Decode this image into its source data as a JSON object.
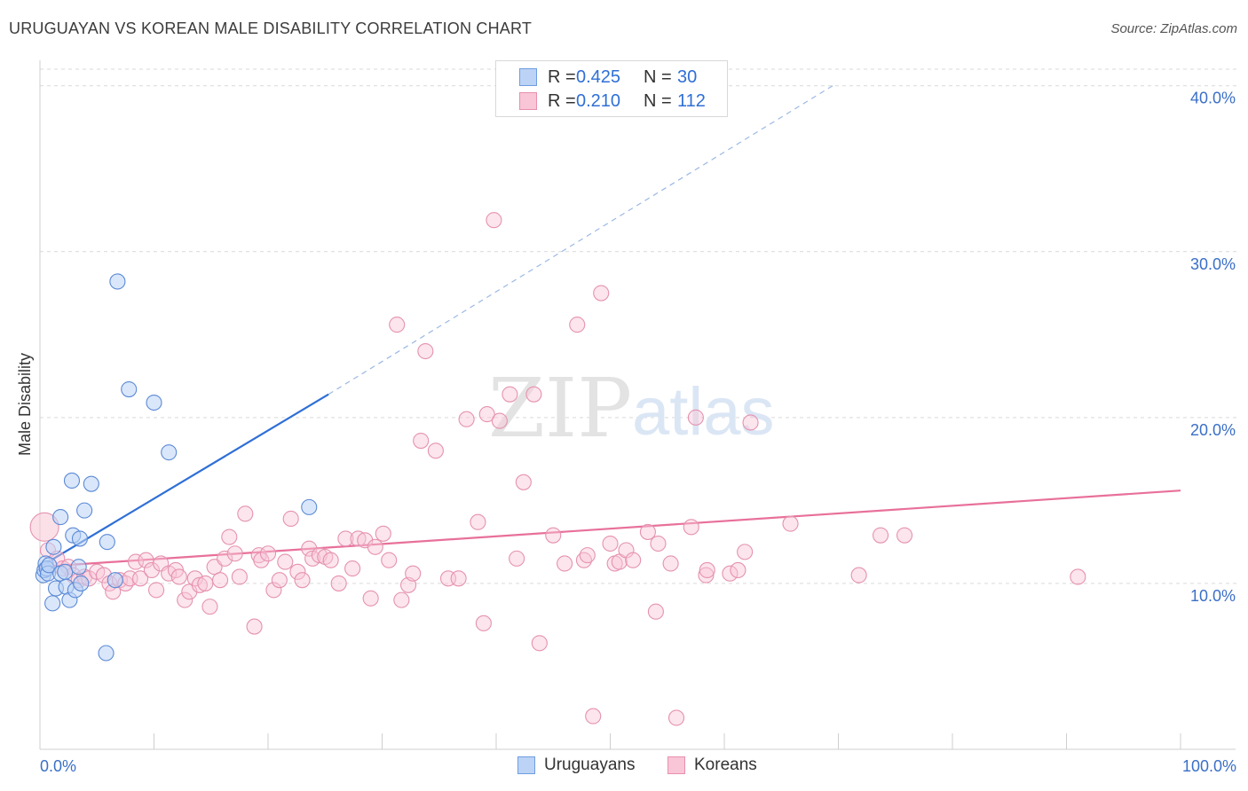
{
  "title": "URUGUAYAN VS KOREAN MALE DISABILITY CORRELATION CHART",
  "source": "Source: ZipAtlas.com",
  "watermark": {
    "zip": "ZIP",
    "atlas": "atlas"
  },
  "colors": {
    "blue": "#2f6fd6",
    "blue_fill": "#bcd3f5",
    "pink": "#e8709a",
    "pink_fill": "#f8c6d6",
    "grid": "#d9d9d9",
    "axis_text": "#3a6fc8"
  },
  "legend": {
    "rows": [
      {
        "r_label": "R =",
        "r_value": "0.425",
        "n_label": "N =",
        "n_value": "30"
      },
      {
        "r_label": "R =",
        "r_value": "0.210",
        "n_label": "N =",
        "n_value": "112"
      }
    ]
  },
  "bottom_legend": {
    "a": "Uruguayans",
    "b": "Koreans"
  },
  "chart_data": {
    "type": "scatter",
    "title": "URUGUAYAN VS KOREAN MALE DISABILITY CORRELATION CHART",
    "xlabel": "",
    "ylabel": "Male Disability",
    "xlim": [
      0,
      100
    ],
    "ylim": [
      0,
      41
    ],
    "x_tick_labels": [
      "0.0%",
      "100.0%"
    ],
    "y_ticks": [
      10,
      20,
      30,
      40
    ],
    "y_tick_labels": [
      "10.0%",
      "20.0%",
      "30.0%",
      "40.0%"
    ],
    "grid": true,
    "legend_position": "top-center",
    "series": [
      {
        "name": "Uruguayans",
        "R": 0.425,
        "N": 30,
        "trend": {
          "x0": 0,
          "y0": 11.0,
          "x1": 25.3,
          "y1": 21.4,
          "dashed_to_x": 69.5,
          "dashed_to_y": 40.0
        },
        "points": [
          [
            0.3,
            10.5
          ],
          [
            0.4,
            10.8
          ],
          [
            0.5,
            11.2
          ],
          [
            0.6,
            10.9
          ],
          [
            0.7,
            10.6
          ],
          [
            0.8,
            11.1
          ],
          [
            1.1,
            8.8
          ],
          [
            1.2,
            12.2
          ],
          [
            1.4,
            9.7
          ],
          [
            1.8,
            10.6
          ],
          [
            1.8,
            14.0
          ],
          [
            2.2,
            10.7
          ],
          [
            2.3,
            9.8
          ],
          [
            2.6,
            9.0
          ],
          [
            2.8,
            16.2
          ],
          [
            2.9,
            12.9
          ],
          [
            3.1,
            9.6
          ],
          [
            3.4,
            11.0
          ],
          [
            3.5,
            12.7
          ],
          [
            3.6,
            10.0
          ],
          [
            3.9,
            14.4
          ],
          [
            4.5,
            16.0
          ],
          [
            5.9,
            12.5
          ],
          [
            5.8,
            5.8
          ],
          [
            6.6,
            10.2
          ],
          [
            6.8,
            28.2
          ],
          [
            7.8,
            21.7
          ],
          [
            10.0,
            20.9
          ],
          [
            11.3,
            17.9
          ],
          [
            23.6,
            14.6
          ]
        ]
      },
      {
        "name": "Koreans",
        "R": 0.21,
        "N": 112,
        "trend": {
          "x0": 0,
          "y0": 11.0,
          "x1": 100,
          "y1": 15.6
        },
        "points": [
          [
            0.4,
            13.4
          ],
          [
            0.7,
            12.0
          ],
          [
            1.5,
            11.5
          ],
          [
            2.0,
            10.9
          ],
          [
            2.5,
            11.0
          ],
          [
            2.9,
            10.5
          ],
          [
            3.4,
            10.2
          ],
          [
            3.9,
            10.4
          ],
          [
            4.3,
            10.3
          ],
          [
            5.0,
            10.7
          ],
          [
            5.6,
            10.5
          ],
          [
            6.1,
            10.0
          ],
          [
            6.4,
            9.5
          ],
          [
            7.0,
            10.2
          ],
          [
            7.5,
            10.0
          ],
          [
            7.9,
            10.3
          ],
          [
            8.4,
            11.3
          ],
          [
            8.8,
            10.3
          ],
          [
            9.3,
            11.4
          ],
          [
            9.8,
            10.8
          ],
          [
            10.2,
            9.6
          ],
          [
            10.6,
            11.2
          ],
          [
            11.3,
            10.6
          ],
          [
            11.9,
            10.8
          ],
          [
            12.2,
            10.4
          ],
          [
            12.7,
            9.0
          ],
          [
            13.1,
            9.5
          ],
          [
            13.6,
            10.3
          ],
          [
            14.0,
            9.9
          ],
          [
            14.5,
            10.0
          ],
          [
            14.9,
            8.6
          ],
          [
            15.3,
            11.0
          ],
          [
            15.8,
            10.2
          ],
          [
            16.2,
            11.5
          ],
          [
            16.6,
            12.8
          ],
          [
            17.1,
            11.8
          ],
          [
            17.5,
            10.4
          ],
          [
            18.0,
            14.2
          ],
          [
            18.8,
            7.4
          ],
          [
            19.2,
            11.7
          ],
          [
            19.4,
            11.4
          ],
          [
            20.0,
            11.8
          ],
          [
            20.5,
            9.6
          ],
          [
            21.0,
            10.2
          ],
          [
            21.5,
            11.3
          ],
          [
            22.0,
            13.9
          ],
          [
            22.6,
            10.7
          ],
          [
            23.0,
            10.2
          ],
          [
            23.6,
            12.1
          ],
          [
            23.9,
            11.5
          ],
          [
            24.5,
            11.7
          ],
          [
            25.0,
            11.6
          ],
          [
            25.5,
            11.4
          ],
          [
            26.2,
            10.0
          ],
          [
            26.8,
            12.7
          ],
          [
            27.4,
            10.9
          ],
          [
            27.9,
            12.7
          ],
          [
            28.5,
            12.6
          ],
          [
            29.0,
            9.1
          ],
          [
            29.4,
            12.2
          ],
          [
            30.1,
            13.0
          ],
          [
            30.6,
            11.4
          ],
          [
            31.3,
            25.6
          ],
          [
            31.7,
            9.0
          ],
          [
            32.3,
            9.9
          ],
          [
            32.7,
            10.6
          ],
          [
            33.4,
            18.6
          ],
          [
            33.8,
            24.0
          ],
          [
            34.7,
            18.0
          ],
          [
            35.8,
            10.3
          ],
          [
            36.7,
            10.3
          ],
          [
            37.4,
            19.9
          ],
          [
            38.4,
            13.7
          ],
          [
            38.9,
            7.6
          ],
          [
            39.2,
            20.2
          ],
          [
            40.3,
            19.8
          ],
          [
            41.2,
            21.4
          ],
          [
            39.8,
            31.9
          ],
          [
            41.8,
            11.5
          ],
          [
            42.4,
            16.1
          ],
          [
            43.3,
            21.4
          ],
          [
            43.8,
            6.4
          ],
          [
            45.0,
            12.9
          ],
          [
            46.0,
            11.2
          ],
          [
            47.1,
            25.6
          ],
          [
            47.7,
            11.4
          ],
          [
            48.0,
            11.7
          ],
          [
            48.5,
            2.0
          ],
          [
            49.2,
            27.5
          ],
          [
            50.0,
            12.4
          ],
          [
            50.4,
            11.2
          ],
          [
            50.8,
            11.3
          ],
          [
            51.4,
            12.0
          ],
          [
            52.0,
            11.4
          ],
          [
            53.3,
            13.1
          ],
          [
            54.0,
            8.3
          ],
          [
            54.2,
            12.4
          ],
          [
            55.3,
            11.2
          ],
          [
            55.8,
            1.9
          ],
          [
            57.1,
            13.4
          ],
          [
            57.5,
            20.0
          ],
          [
            58.4,
            10.5
          ],
          [
            58.5,
            10.8
          ],
          [
            60.5,
            10.6
          ],
          [
            61.2,
            10.8
          ],
          [
            61.8,
            11.9
          ],
          [
            62.3,
            19.7
          ],
          [
            65.8,
            13.6
          ],
          [
            71.8,
            10.5
          ],
          [
            73.7,
            12.9
          ],
          [
            75.8,
            12.9
          ],
          [
            91.0,
            10.4
          ]
        ]
      }
    ]
  }
}
